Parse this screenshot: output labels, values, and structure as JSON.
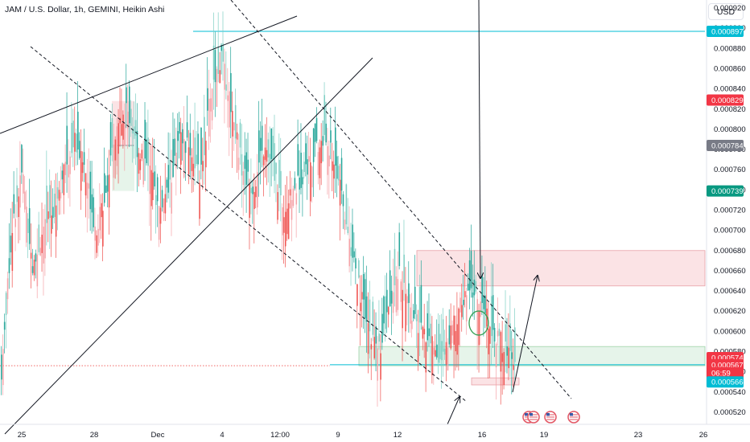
{
  "header": {
    "symbol_title": "JAM / U.S. Dollar, 1h, GEMINI, Heikin Ashi",
    "currency_label": "USD"
  },
  "colors": {
    "up": "#26a69a",
    "down": "#ef5350",
    "down_light": "#f5a3a8",
    "up_light": "#7fcfc4",
    "cyan_line": "#00bcd4",
    "red_zone": "#fbe3e5",
    "green_zone": "#e6f4ea",
    "grey_tag": "#787b86",
    "green_tag": "#089981",
    "red_tag": "#f23645",
    "cyan_tag": "#00bcd4"
  },
  "chart_data": {
    "type": "candlestick",
    "style": "Heikin Ashi",
    "interval": "1h",
    "exchange": "GEMINI",
    "y_axis": {
      "min": 0.000508,
      "max": 0.000928,
      "ticks": [
        "0.000520",
        "0.000540",
        "0.000560",
        "0.000580",
        "0.000600",
        "0.000620",
        "0.000640",
        "0.000660",
        "0.000680",
        "0.000700",
        "0.000720",
        "0.000740",
        "0.000760",
        "0.000780",
        "0.000800",
        "0.000820",
        "0.000840",
        "0.000860",
        "0.000880",
        "0.000900",
        "0.000920"
      ]
    },
    "x_axis": {
      "ticks": [
        "25",
        "28",
        "Dec",
        "4",
        "12:00",
        "9",
        "12",
        "16",
        "19",
        "23",
        "26"
      ]
    },
    "price_tags": [
      {
        "label": "0.000897",
        "value": 0.000897,
        "style": "cyan"
      },
      {
        "label": "0.000829",
        "value": 0.000829,
        "style": "red"
      },
      {
        "label": "0.000784",
        "value": 0.000784,
        "style": "grey"
      },
      {
        "label": "0.000739",
        "value": 0.000739,
        "style": "green"
      },
      {
        "label": "0.000574",
        "value": 0.000574,
        "style": "red"
      },
      {
        "label": "0.000567",
        "value": 0.000567,
        "style": "red"
      },
      {
        "label": "06:59",
        "value": 0.000559,
        "style": "red"
      },
      {
        "label": "0.000566",
        "value": 0.00055,
        "style": "cyan"
      }
    ],
    "horizontal_lines": [
      {
        "value": 0.000897,
        "style": "cyan"
      },
      {
        "value": 0.000567,
        "style": "cyan"
      }
    ],
    "zones": [
      {
        "type": "supply",
        "price_top": 0.00068,
        "price_bottom": 0.000645
      },
      {
        "type": "demand",
        "price_top": 0.000585,
        "price_bottom": 0.000566
      },
      {
        "type": "small",
        "price_top": 0.000554,
        "price_bottom": 0.000547
      }
    ],
    "candles_seed": [
      0.00056,
      0.0007,
      0.00076,
      0.00066,
      0.0007,
      0.00072,
      0.00076,
      0.00079,
      0.00076,
      0.0007,
      0.00074,
      0.0008,
      0.00082,
      0.00078,
      0.00077,
      0.00072,
      0.00074,
      0.00079,
      0.00078,
      0.00075,
      0.00084,
      0.00087,
      0.00082,
      0.00076,
      0.00074,
      0.00078,
      0.00076,
      0.00072,
      0.00074,
      0.00076,
      0.00078,
      0.00079,
      0.00076,
      0.0007,
      0.00065,
      0.0006,
      0.00058,
      0.00062,
      0.00066,
      0.00062,
      0.0006,
      0.00059,
      0.00057,
      0.0006,
      0.00063,
      0.00064,
      0.00062,
      0.0006,
      0.000585,
      0.000575
    ]
  }
}
